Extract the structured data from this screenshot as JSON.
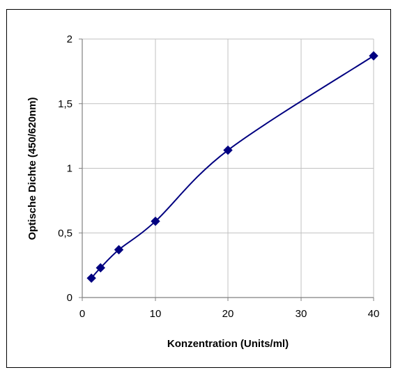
{
  "chart_data": {
    "type": "line",
    "title": "",
    "xlabel": "Konzentration  (Units/ml)",
    "ylabel": "Optische  Dichte  (450/620nm)",
    "x_tick_labels": [
      "0",
      "10",
      "20",
      "30",
      "40"
    ],
    "y_tick_labels": [
      "0",
      "0,5",
      "1",
      "1,5",
      "2"
    ],
    "y_ticks": [
      0,
      0.5,
      1,
      1.5,
      2
    ],
    "ylim": [
      0,
      2
    ],
    "grid": true,
    "legend": "none",
    "series": [
      {
        "x": [
          1.25,
          2.5,
          5,
          10,
          20,
          40
        ],
        "y": [
          0.15,
          0.23,
          0.37,
          0.59,
          1.14,
          1.87
        ],
        "color": "#000080",
        "marker": "diamond"
      }
    ]
  }
}
